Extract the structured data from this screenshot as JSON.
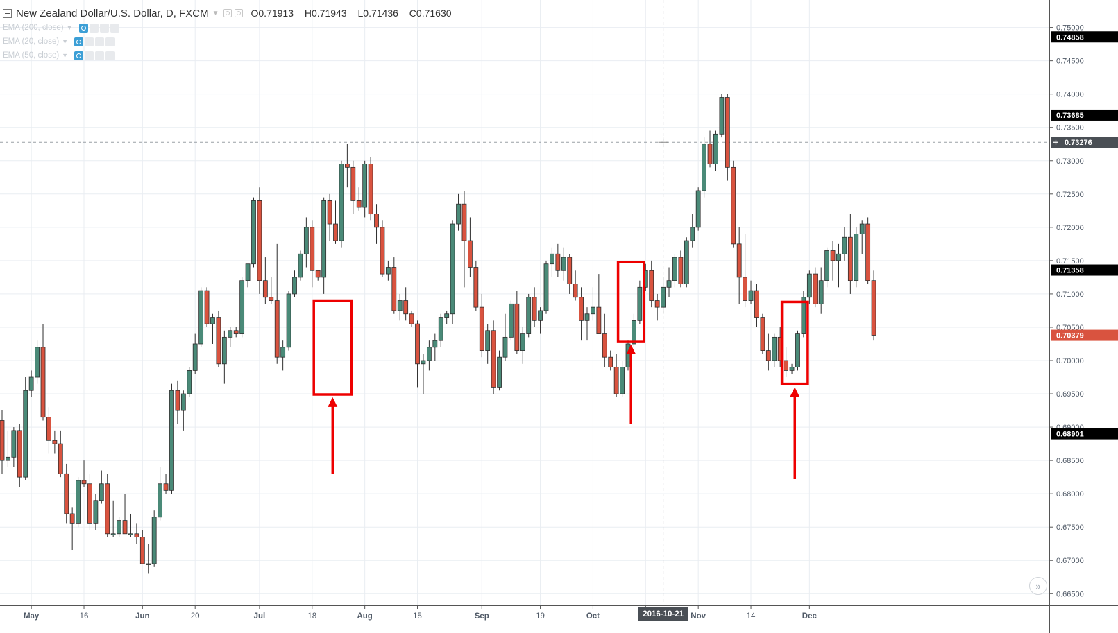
{
  "header": {
    "title": "New Zealand Dollar/U.S. Dollar, D, FXCM",
    "open": "O0.71913",
    "high": "H0.71943",
    "low": "L0.71436",
    "close": "C0.71630"
  },
  "studies": [
    {
      "label": "EMA (200, close)"
    },
    {
      "label": "EMA (20, close)"
    },
    {
      "label": "EMA (50, close)"
    }
  ],
  "colors": {
    "up": "#4a8a78",
    "down": "#d9533f",
    "annotation": "#ee0000",
    "grid": "#e9edf2",
    "axis_text": "#4f5966"
  },
  "icons": {
    "collapse": "minus-square-icon",
    "scroll_right": "double-chevron-right-icon"
  },
  "scroll_button_glyph": "»",
  "chart_data": {
    "type": "candlestick",
    "symbol": "NZDUSD",
    "interval": "D",
    "ylim": [
      0.6643,
      0.751
    ],
    "y_ticks": [
      "0.75000",
      "0.74500",
      "0.74000",
      "0.73500",
      "0.73000",
      "0.72500",
      "0.72000",
      "0.71500",
      "0.71000",
      "0.70500",
      "0.70000",
      "0.69500",
      "0.69000",
      "0.68500",
      "0.68000",
      "0.67500",
      "0.67000",
      "0.66500"
    ],
    "x_tick_labels": [
      "May",
      "16",
      "Jun",
      "20",
      "Jul",
      "18",
      "Aug",
      "15",
      "Sep",
      "19",
      "Oct",
      "17",
      "Nov",
      "14",
      "Dec"
    ],
    "x_tick_index": [
      5,
      14,
      24,
      33,
      44,
      53,
      62,
      71,
      82,
      92,
      101,
      110,
      119,
      128,
      138
    ],
    "crosshair": {
      "date": "2016-10-21",
      "price": "0.73276",
      "price_value": 0.73276,
      "index": 113
    },
    "price_tags": [
      {
        "label": "0.74858",
        "value": 0.74858,
        "kind": "dark"
      },
      {
        "label": "0.73685",
        "value": 0.73685,
        "kind": "dark"
      },
      {
        "label": "0.71358",
        "value": 0.71358,
        "kind": "dark"
      },
      {
        "label": "0.70379",
        "value": 0.70379,
        "kind": "current"
      },
      {
        "label": "0.68901",
        "value": 0.68901,
        "kind": "dark"
      }
    ],
    "annotations": [
      {
        "type": "box",
        "from_index": 54,
        "to_index": 59,
        "low": 0.6949,
        "high": 0.709
      },
      {
        "type": "arrow",
        "index": 56.5,
        "tail": 0.683,
        "head": 0.6945
      },
      {
        "type": "box",
        "from_index": 106,
        "to_index": 109,
        "low": 0.7028,
        "high": 0.7148
      },
      {
        "type": "arrow",
        "index": 107.5,
        "tail": 0.6905,
        "head": 0.7024
      },
      {
        "type": "box",
        "from_index": 134,
        "to_index": 137,
        "low": 0.6965,
        "high": 0.7088
      },
      {
        "type": "arrow",
        "index": 135.5,
        "tail": 0.6822,
        "head": 0.696
      }
    ],
    "ohlc": [
      [
        0.691,
        0.6925,
        0.683,
        0.685
      ],
      [
        0.685,
        0.6895,
        0.684,
        0.6855
      ],
      [
        0.6855,
        0.69,
        0.684,
        0.6895
      ],
      [
        0.6895,
        0.6905,
        0.681,
        0.6825
      ],
      [
        0.6825,
        0.6975,
        0.682,
        0.6955
      ],
      [
        0.6955,
        0.6985,
        0.6945,
        0.6975
      ],
      [
        0.6975,
        0.703,
        0.6965,
        0.702
      ],
      [
        0.702,
        0.7055,
        0.691,
        0.6915
      ],
      [
        0.6915,
        0.693,
        0.686,
        0.688
      ],
      [
        0.688,
        0.6895,
        0.686,
        0.6875
      ],
      [
        0.6875,
        0.6895,
        0.6825,
        0.683
      ],
      [
        0.683,
        0.6845,
        0.6755,
        0.677
      ],
      [
        0.677,
        0.678,
        0.6715,
        0.6755
      ],
      [
        0.6755,
        0.6825,
        0.675,
        0.682
      ],
      [
        0.682,
        0.685,
        0.681,
        0.6815
      ],
      [
        0.6815,
        0.683,
        0.6745,
        0.6755
      ],
      [
        0.6755,
        0.68,
        0.6745,
        0.679
      ],
      [
        0.679,
        0.6835,
        0.6785,
        0.6815
      ],
      [
        0.6815,
        0.683,
        0.6735,
        0.674
      ],
      [
        0.674,
        0.679,
        0.6735,
        0.674
      ],
      [
        0.674,
        0.6765,
        0.6735,
        0.676
      ],
      [
        0.676,
        0.68,
        0.674,
        0.674
      ],
      [
        0.674,
        0.677,
        0.6735,
        0.674
      ],
      [
        0.674,
        0.6755,
        0.6725,
        0.6735
      ],
      [
        0.6735,
        0.6745,
        0.6695,
        0.6695
      ],
      [
        0.6695,
        0.6725,
        0.668,
        0.6695
      ],
      [
        0.6695,
        0.6775,
        0.669,
        0.6765
      ],
      [
        0.6765,
        0.684,
        0.676,
        0.6815
      ],
      [
        0.6815,
        0.683,
        0.68,
        0.6805
      ],
      [
        0.6805,
        0.6965,
        0.68,
        0.6955
      ],
      [
        0.6955,
        0.697,
        0.6905,
        0.6925
      ],
      [
        0.6925,
        0.6955,
        0.6895,
        0.695
      ],
      [
        0.695,
        0.699,
        0.6945,
        0.6985
      ],
      [
        0.6985,
        0.704,
        0.698,
        0.7025
      ],
      [
        0.7025,
        0.711,
        0.702,
        0.7105
      ],
      [
        0.7105,
        0.711,
        0.705,
        0.7055
      ],
      [
        0.7055,
        0.707,
        0.7025,
        0.7065
      ],
      [
        0.7065,
        0.7075,
        0.699,
        0.6995
      ],
      [
        0.6995,
        0.7045,
        0.6965,
        0.7035
      ],
      [
        0.7035,
        0.705,
        0.702,
        0.7045
      ],
      [
        0.7045,
        0.705,
        0.7035,
        0.704
      ],
      [
        0.704,
        0.7125,
        0.7035,
        0.712
      ],
      [
        0.712,
        0.7145,
        0.711,
        0.7145
      ],
      [
        0.7145,
        0.7245,
        0.714,
        0.724
      ],
      [
        0.724,
        0.726,
        0.71,
        0.712
      ],
      [
        0.712,
        0.7155,
        0.7085,
        0.7095
      ],
      [
        0.7095,
        0.7125,
        0.7085,
        0.709
      ],
      [
        0.709,
        0.7175,
        0.6995,
        0.7005
      ],
      [
        0.7005,
        0.703,
        0.6985,
        0.702
      ],
      [
        0.702,
        0.7105,
        0.7015,
        0.71
      ],
      [
        0.71,
        0.7135,
        0.7095,
        0.7125
      ],
      [
        0.7125,
        0.7165,
        0.712,
        0.716
      ],
      [
        0.716,
        0.7215,
        0.714,
        0.72
      ],
      [
        0.72,
        0.721,
        0.711,
        0.7135
      ],
      [
        0.7135,
        0.7135,
        0.712,
        0.7125
      ],
      [
        0.7125,
        0.7245,
        0.71,
        0.724
      ],
      [
        0.724,
        0.725,
        0.718,
        0.7205
      ],
      [
        0.7205,
        0.724,
        0.7175,
        0.718
      ],
      [
        0.718,
        0.73,
        0.717,
        0.7295
      ],
      [
        0.7295,
        0.7325,
        0.726,
        0.729
      ],
      [
        0.729,
        0.73,
        0.722,
        0.724
      ],
      [
        0.724,
        0.726,
        0.7225,
        0.723
      ],
      [
        0.723,
        0.73,
        0.7215,
        0.7295
      ],
      [
        0.7295,
        0.7305,
        0.721,
        0.722
      ],
      [
        0.722,
        0.7235,
        0.7175,
        0.72
      ],
      [
        0.72,
        0.721,
        0.7125,
        0.713
      ],
      [
        0.713,
        0.715,
        0.712,
        0.714
      ],
      [
        0.714,
        0.7155,
        0.707,
        0.7075
      ],
      [
        0.7075,
        0.71,
        0.706,
        0.709
      ],
      [
        0.709,
        0.711,
        0.706,
        0.707
      ],
      [
        0.707,
        0.7075,
        0.705,
        0.7055
      ],
      [
        0.7055,
        0.706,
        0.696,
        0.6995
      ],
      [
        0.6995,
        0.701,
        0.695,
        0.7
      ],
      [
        0.7,
        0.703,
        0.6985,
        0.702
      ],
      [
        0.702,
        0.704,
        0.7,
        0.703
      ],
      [
        0.703,
        0.707,
        0.702,
        0.7065
      ],
      [
        0.7065,
        0.7075,
        0.7055,
        0.707
      ],
      [
        0.707,
        0.721,
        0.7055,
        0.7205
      ],
      [
        0.7205,
        0.725,
        0.7195,
        0.7235
      ],
      [
        0.7235,
        0.7255,
        0.711,
        0.718
      ],
      [
        0.718,
        0.7215,
        0.7125,
        0.714
      ],
      [
        0.714,
        0.715,
        0.7075,
        0.708
      ],
      [
        0.708,
        0.71,
        0.7005,
        0.7015
      ],
      [
        0.7015,
        0.7055,
        0.6995,
        0.7045
      ],
      [
        0.7045,
        0.706,
        0.695,
        0.696
      ],
      [
        0.696,
        0.7015,
        0.6955,
        0.7005
      ],
      [
        0.7005,
        0.707,
        0.7,
        0.7035
      ],
      [
        0.7035,
        0.709,
        0.703,
        0.7085
      ],
      [
        0.7085,
        0.7105,
        0.701,
        0.7015
      ],
      [
        0.7015,
        0.705,
        0.6995,
        0.704
      ],
      [
        0.704,
        0.71,
        0.7035,
        0.7095
      ],
      [
        0.7095,
        0.711,
        0.705,
        0.706
      ],
      [
        0.706,
        0.708,
        0.704,
        0.7075
      ],
      [
        0.7075,
        0.715,
        0.707,
        0.7145
      ],
      [
        0.7145,
        0.717,
        0.7125,
        0.716
      ],
      [
        0.716,
        0.7175,
        0.7125,
        0.7135
      ],
      [
        0.7135,
        0.717,
        0.712,
        0.7155
      ],
      [
        0.7155,
        0.716,
        0.71,
        0.7115
      ],
      [
        0.7115,
        0.7135,
        0.709,
        0.7095
      ],
      [
        0.7095,
        0.711,
        0.703,
        0.706
      ],
      [
        0.706,
        0.708,
        0.703,
        0.707
      ],
      [
        0.707,
        0.711,
        0.706,
        0.708
      ],
      [
        0.708,
        0.713,
        0.704,
        0.704
      ],
      [
        0.704,
        0.707,
        0.699,
        0.7005
      ],
      [
        0.7005,
        0.7015,
        0.6985,
        0.699
      ],
      [
        0.699,
        0.701,
        0.6945,
        0.695
      ],
      [
        0.695,
        0.7,
        0.6945,
        0.699
      ],
      [
        0.699,
        0.703,
        0.6985,
        0.7025
      ],
      [
        0.7025,
        0.707,
        0.702,
        0.706
      ],
      [
        0.706,
        0.712,
        0.7055,
        0.711
      ],
      [
        0.711,
        0.7145,
        0.7105,
        0.7135
      ],
      [
        0.7135,
        0.715,
        0.708,
        0.709
      ],
      [
        0.709,
        0.71,
        0.706,
        0.708
      ],
      [
        0.708,
        0.7125,
        0.707,
        0.711
      ],
      [
        0.711,
        0.714,
        0.7095,
        0.712
      ],
      [
        0.712,
        0.716,
        0.711,
        0.7155
      ],
      [
        0.7155,
        0.7165,
        0.711,
        0.7115
      ],
      [
        0.7115,
        0.7185,
        0.711,
        0.718
      ],
      [
        0.718,
        0.722,
        0.717,
        0.72
      ],
      [
        0.72,
        0.726,
        0.7195,
        0.7255
      ],
      [
        0.7255,
        0.7335,
        0.7245,
        0.7325
      ],
      [
        0.7325,
        0.7345,
        0.729,
        0.7295
      ],
      [
        0.7295,
        0.7345,
        0.7285,
        0.734
      ],
      [
        0.734,
        0.74,
        0.7335,
        0.7395
      ],
      [
        0.7395,
        0.74,
        0.727,
        0.729
      ],
      [
        0.729,
        0.73,
        0.717,
        0.7175
      ],
      [
        0.7175,
        0.72,
        0.7085,
        0.7125
      ],
      [
        0.7125,
        0.719,
        0.708,
        0.709
      ],
      [
        0.709,
        0.712,
        0.7085,
        0.7105
      ],
      [
        0.7105,
        0.7115,
        0.705,
        0.7065
      ],
      [
        0.7065,
        0.707,
        0.701,
        0.7015
      ],
      [
        0.7015,
        0.704,
        0.6985,
        0.7
      ],
      [
        0.7,
        0.704,
        0.699,
        0.7035
      ],
      [
        0.7035,
        0.705,
        0.699,
        0.7
      ],
      [
        0.7,
        0.702,
        0.6975,
        0.6985
      ],
      [
        0.6985,
        0.6995,
        0.698,
        0.699
      ],
      [
        0.699,
        0.7045,
        0.6985,
        0.704
      ],
      [
        0.704,
        0.7105,
        0.7035,
        0.7095
      ],
      [
        0.7095,
        0.7135,
        0.7085,
        0.713
      ],
      [
        0.713,
        0.714,
        0.708,
        0.7085
      ],
      [
        0.7085,
        0.714,
        0.707,
        0.712
      ],
      [
        0.712,
        0.717,
        0.711,
        0.7165
      ],
      [
        0.7165,
        0.718,
        0.712,
        0.715
      ],
      [
        0.715,
        0.7175,
        0.711,
        0.716
      ],
      [
        0.716,
        0.72,
        0.715,
        0.7185
      ],
      [
        0.7185,
        0.722,
        0.71,
        0.712
      ],
      [
        0.712,
        0.72,
        0.711,
        0.719
      ],
      [
        0.719,
        0.721,
        0.716,
        0.7205
      ],
      [
        0.7205,
        0.7215,
        0.7115,
        0.712
      ],
      [
        0.712,
        0.7135,
        0.703,
        0.7038
      ]
    ]
  }
}
